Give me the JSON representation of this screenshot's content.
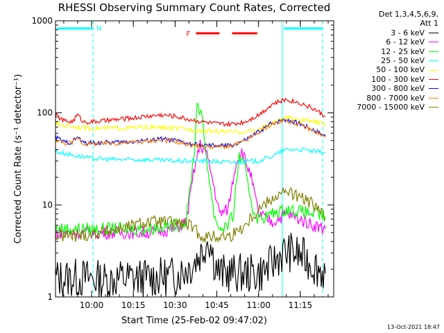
{
  "chart_data": {
    "type": "line",
    "title": "RHESSI Observing Summary Count Rates, Corrected",
    "xlabel": "Start Time (25-Feb-02 09:47:02)",
    "ylabel": "Corrected Count Rate (s⁻¹ detector⁻¹)",
    "y_scale": "log",
    "ylim": [
      1,
      1000
    ],
    "y_ticks": [
      "1",
      "10",
      "100",
      "1000"
    ],
    "xlim": [
      "09:47:02",
      "11:27:00"
    ],
    "x_ticks": [
      "10:00",
      "10:15",
      "10:30",
      "10:45",
      "11:00",
      "11:15"
    ],
    "grid": false,
    "legend_header": [
      "Det 1,3,4,5,6,9,",
      "Att 1"
    ],
    "legend_position": "right",
    "annotations": [
      {
        "text": "N",
        "color": "#00ffff"
      },
      {
        "text": "F",
        "color": "#ff0000"
      }
    ],
    "night_intervals": [
      [
        "09:47:02",
        "10:00:30"
      ],
      [
        "11:08:30",
        "11:23:00"
      ]
    ],
    "flare_intervals": [
      [
        "10:37:30",
        "10:46:00"
      ],
      [
        "10:50:30",
        "10:59:30"
      ]
    ],
    "series": [
      {
        "name": "3 - 6 keV",
        "color": "#000000",
        "x": [
          "09:47",
          "09:55",
          "10:00",
          "10:05",
          "10:10",
          "10:20",
          "10:30",
          "10:36",
          "10:40",
          "10:42",
          "10:44",
          "10:46",
          "10:50",
          "10:55",
          "11:00",
          "11:03",
          "11:08",
          "11:12",
          "11:16",
          "11:20",
          "11:24"
        ],
        "values": [
          1.6,
          1.6,
          1.6,
          1.5,
          1.6,
          1.6,
          1.7,
          2.2,
          3.2,
          4.6,
          2.5,
          1.8,
          1.8,
          1.8,
          1.8,
          2.0,
          2.9,
          3.1,
          2.7,
          2.2,
          1.8
        ]
      },
      {
        "name": "6 - 12 keV",
        "color": "#ff00ff",
        "x": [
          "09:47",
          "09:55",
          "10:00",
          "10:10",
          "10:20",
          "10:30",
          "10:34",
          "10:37",
          "10:39",
          "10:41",
          "10:43",
          "10:46",
          "10:49",
          "10:52",
          "10:54",
          "10:57",
          "11:00",
          "11:05",
          "11:10",
          "11:15",
          "11:20",
          "11:24"
        ],
        "values": [
          5.0,
          5.0,
          5.0,
          5.0,
          5.0,
          5.5,
          6.5,
          25,
          45,
          38,
          22,
          8,
          9,
          30,
          38,
          22,
          8,
          6.5,
          8,
          7,
          6,
          5.5
        ]
      },
      {
        "name": "12 - 25 keV",
        "color": "#00ff00",
        "x": [
          "09:47",
          "09:55",
          "10:00",
          "10:10",
          "10:20",
          "10:30",
          "10:34",
          "10:37",
          "10:38",
          "10:40",
          "10:42",
          "10:44",
          "10:46",
          "10:49",
          "10:51",
          "10:53",
          "10:55",
          "10:58",
          "11:00",
          "11:05",
          "11:10",
          "11:15",
          "11:20",
          "11:24"
        ],
        "values": [
          5.5,
          5.5,
          5.5,
          5.5,
          5.5,
          6,
          6.5,
          40,
          140,
          75,
          22,
          8,
          5.5,
          6,
          8,
          35,
          25,
          9,
          7,
          8,
          9,
          8.5,
          8,
          7.5
        ]
      },
      {
        "name": "25 - 50 keV",
        "color": "#00ffff",
        "x": [
          "09:47",
          "09:55",
          "10:00",
          "10:10",
          "10:20",
          "10:30",
          "10:40",
          "10:50",
          "11:00",
          "11:05",
          "11:10",
          "11:15",
          "11:20",
          "11:24"
        ],
        "values": [
          38,
          34,
          32,
          31,
          31,
          30,
          30,
          29,
          30,
          34,
          40,
          40,
          38,
          37
        ]
      },
      {
        "name": "50 - 100 keV",
        "color": "#ffff00",
        "x": [
          "09:47",
          "09:55",
          "10:00",
          "10:10",
          "10:20",
          "10:30",
          "10:40",
          "10:50",
          "10:55",
          "11:00",
          "11:05",
          "11:10",
          "11:15",
          "11:20",
          "11:24"
        ],
        "values": [
          75,
          70,
          68,
          68,
          70,
          68,
          64,
          62,
          62,
          66,
          78,
          88,
          85,
          80,
          75
        ]
      },
      {
        "name": "100 - 300 keV",
        "color": "#ff0000",
        "x": [
          "09:47",
          "09:50",
          "09:53",
          "09:55",
          "09:57",
          "10:00",
          "10:05",
          "10:10",
          "10:15",
          "10:20",
          "10:25",
          "10:30",
          "10:35",
          "10:40",
          "10:45",
          "10:50",
          "10:55",
          "11:00",
          "11:05",
          "11:10",
          "11:15",
          "11:20",
          "11:24"
        ],
        "values": [
          95,
          82,
          80,
          95,
          80,
          80,
          82,
          85,
          88,
          92,
          95,
          92,
          85,
          80,
          76,
          75,
          80,
          95,
          125,
          140,
          128,
          110,
          92
        ]
      },
      {
        "name": "300 - 800 keV",
        "color": "#0000ff",
        "x": [
          "09:47",
          "09:50",
          "09:53",
          "09:55",
          "09:57",
          "10:00",
          "10:10",
          "10:20",
          "10:25",
          "10:30",
          "10:35",
          "10:40",
          "10:45",
          "10:50",
          "10:55",
          "11:00",
          "11:05",
          "11:10",
          "11:15",
          "11:20",
          "11:24"
        ],
        "values": [
          55,
          48,
          48,
          55,
          47,
          47,
          48,
          50,
          52,
          50,
          46,
          44,
          44,
          44,
          50,
          62,
          78,
          85,
          76,
          65,
          56
        ]
      },
      {
        "name": "800 - 7000 keV",
        "color": "#ff7f00",
        "x": [
          "09:47",
          "09:50",
          "09:53",
          "09:55",
          "09:57",
          "10:00",
          "10:10",
          "10:20",
          "10:25",
          "10:30",
          "10:35",
          "10:40",
          "10:45",
          "10:50",
          "10:55",
          "11:00",
          "11:05",
          "11:10",
          "11:15",
          "11:20",
          "11:24"
        ],
        "values": [
          52,
          47,
          47,
          54,
          46,
          46,
          47,
          49,
          51,
          49,
          45,
          43,
          43,
          43,
          49,
          61,
          76,
          83,
          74,
          63,
          54
        ]
      },
      {
        "name": "7000 - 15000 keV",
        "color": "#7f7f00",
        "x": [
          "09:47",
          "09:55",
          "10:00",
          "10:10",
          "10:20",
          "10:30",
          "10:35",
          "10:40",
          "10:45",
          "10:50",
          "10:55",
          "11:00",
          "11:05",
          "11:10",
          "11:15",
          "11:20",
          "11:24"
        ],
        "values": [
          4.6,
          4.6,
          4.8,
          5.5,
          6.5,
          6.5,
          6.0,
          4.5,
          4.5,
          4.6,
          6,
          9,
          12,
          14,
          12,
          10,
          7
        ]
      }
    ]
  },
  "footer": "13-Oct-2021 18:47"
}
